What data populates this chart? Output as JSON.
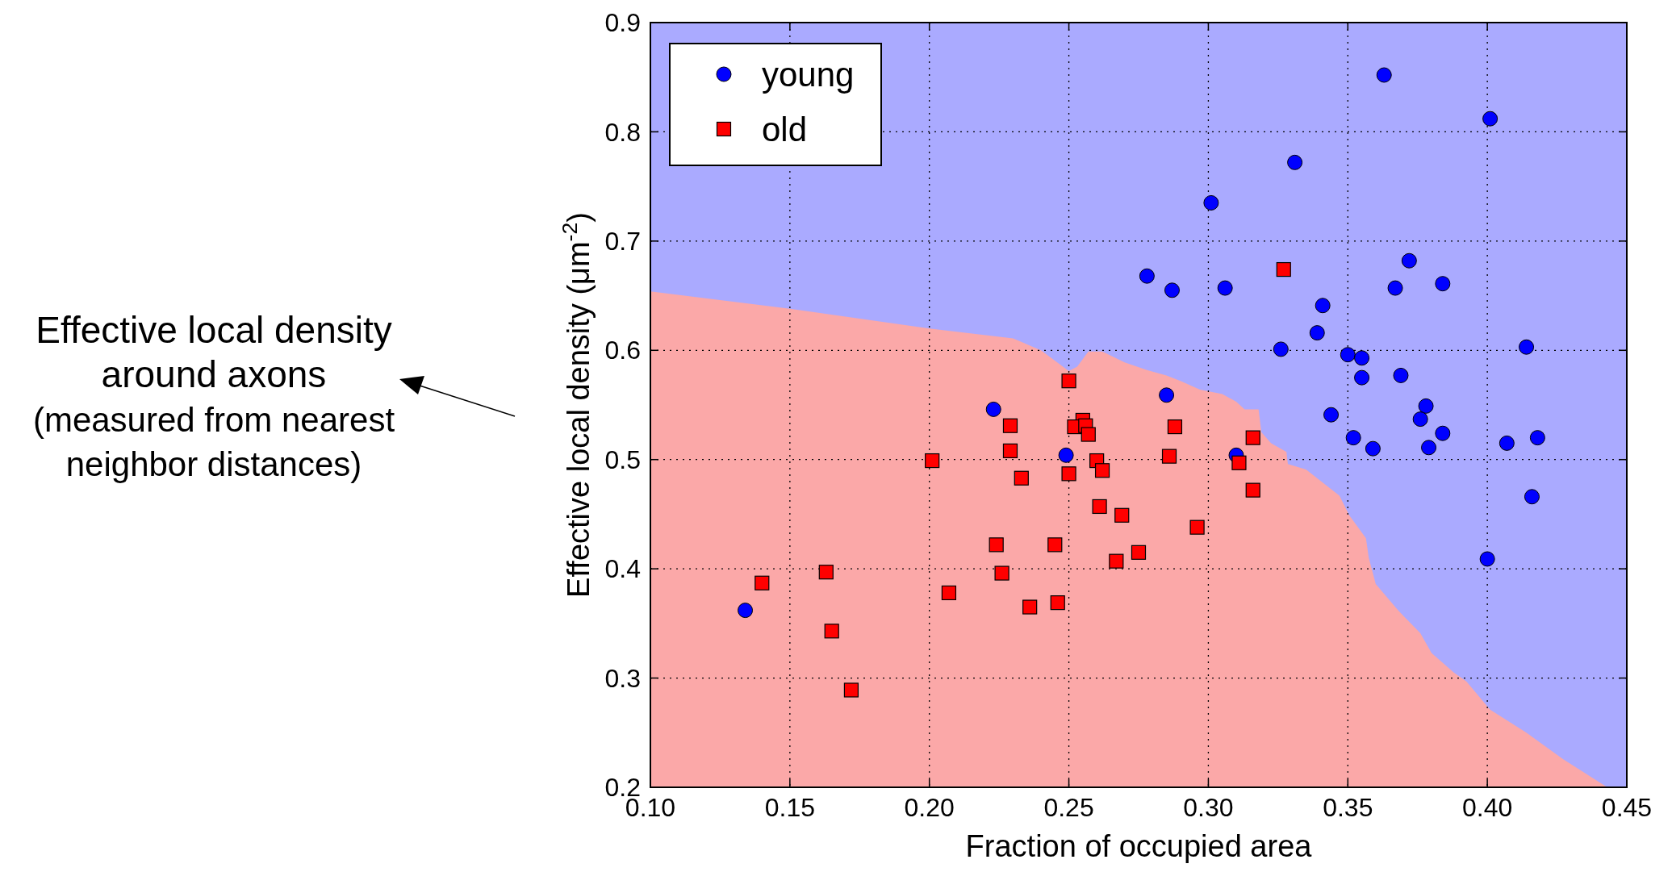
{
  "chart_data": {
    "type": "scatter",
    "xlabel": "Fraction of occupied area",
    "ylabel": "Effective local density (μm$^{-2}$)",
    "xlim": [
      0.1,
      0.45
    ],
    "xticks": [
      {
        "value": 0.1,
        "label": "0.10"
      },
      {
        "value": 0.15,
        "label": "0.15"
      },
      {
        "value": 0.2,
        "label": "0.20"
      },
      {
        "value": 0.25,
        "label": "0.25"
      },
      {
        "value": 0.3,
        "label": "0.30"
      },
      {
        "value": 0.35,
        "label": "0.35"
      },
      {
        "value": 0.4,
        "label": "0.40"
      },
      {
        "value": 0.45,
        "label": "0.45"
      }
    ],
    "ylim": [
      0.2,
      0.9
    ],
    "yticks": [
      0.2,
      0.3,
      0.4,
      0.5,
      0.6,
      0.7,
      0.8,
      0.9
    ],
    "grid": true,
    "legend": "top left",
    "annotations": [
      "Effective local density\naround axons\n(measured from nearest\nneighbor distances)"
    ],
    "series": [
      {
        "type": "area",
        "color": "#fba8a8",
        "x": [
          0.1,
          0.15,
          0.2,
          0.23,
          0.24,
          0.25,
          0.253,
          0.257,
          0.262,
          0.27,
          0.278,
          0.285,
          0.29,
          0.297,
          0.305,
          0.31,
          0.313,
          0.318,
          0.319,
          0.3225,
          0.328,
          0.3285,
          0.335,
          0.341,
          0.347,
          0.3505,
          0.3565,
          0.3575,
          0.36,
          0.368,
          0.376,
          0.38,
          0.388,
          0.3925,
          0.401,
          0.414,
          0.427,
          0.443,
          0.45
        ],
        "values": [
          0.654,
          0.638,
          0.62,
          0.611,
          0.6,
          0.581,
          0.585,
          0.599,
          0.599,
          0.589,
          0.582,
          0.577,
          0.572,
          0.564,
          0.56,
          0.553,
          0.546,
          0.546,
          0.525,
          0.515,
          0.507,
          0.496,
          0.491,
          0.479,
          0.467,
          0.449,
          0.428,
          0.41,
          0.386,
          0.362,
          0.341,
          0.323,
          0.305,
          0.297,
          0.271,
          0.25,
          0.226,
          0.2,
          0.2
        ]
      },
      {
        "name": "young",
        "marker": "circle",
        "color": "#0000ff",
        "x": [
          0.363,
          0.401,
          0.331,
          0.301,
          0.278,
          0.287,
          0.306,
          0.372,
          0.367,
          0.384,
          0.341,
          0.339,
          0.326,
          0.414,
          0.35,
          0.355,
          0.355,
          0.369,
          0.285,
          0.378,
          0.344,
          0.376,
          0.384,
          0.352,
          0.359,
          0.379,
          0.407,
          0.418,
          0.416,
          0.4,
          0.31,
          0.223,
          0.249,
          0.134
        ],
        "values": [
          0.852,
          0.812,
          0.772,
          0.735,
          0.668,
          0.655,
          0.657,
          0.682,
          0.657,
          0.661,
          0.641,
          0.616,
          0.601,
          0.603,
          0.596,
          0.593,
          0.575,
          0.577,
          0.559,
          0.549,
          0.541,
          0.537,
          0.524,
          0.52,
          0.51,
          0.511,
          0.515,
          0.52,
          0.466,
          0.409,
          0.504,
          0.546,
          0.504,
          0.362
        ]
      },
      {
        "name": "old",
        "marker": "square",
        "color": "#ff0000",
        "x": [
          0.327,
          0.25,
          0.229,
          0.255,
          0.252,
          0.256,
          0.257,
          0.229,
          0.201,
          0.26,
          0.262,
          0.25,
          0.233,
          0.261,
          0.269,
          0.224,
          0.245,
          0.275,
          0.267,
          0.163,
          0.14,
          0.226,
          0.207,
          0.236,
          0.246,
          0.165,
          0.172,
          0.288,
          0.316,
          0.286,
          0.311,
          0.316,
          0.296
        ],
        "values": [
          0.674,
          0.572,
          0.531,
          0.536,
          0.53,
          0.531,
          0.523,
          0.508,
          0.499,
          0.499,
          0.49,
          0.487,
          0.483,
          0.457,
          0.449,
          0.422,
          0.422,
          0.415,
          0.407,
          0.397,
          0.387,
          0.396,
          0.378,
          0.365,
          0.369,
          0.343,
          0.289,
          0.53,
          0.52,
          0.503,
          0.497,
          0.472,
          0.438
        ]
      }
    ]
  }
}
